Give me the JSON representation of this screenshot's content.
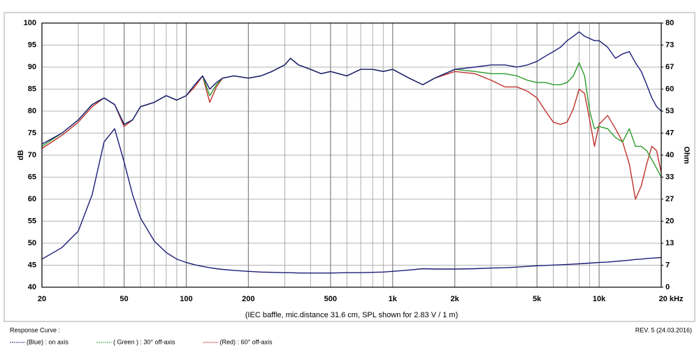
{
  "chart_data": {
    "type": "line",
    "x_label": "(IEC baffle, mic.distance 31.6 cm, SPL shown for 2.83 V / 1 m)",
    "y_label": "dB",
    "y2_label": "Ohm",
    "legend_title": "Response Curve :",
    "note": "REV. 5 (24.03.2016)",
    "xscale": "log",
    "grid": true,
    "legend": "bottom-left",
    "xlim": [
      20,
      20000
    ],
    "xticks": [
      20,
      50,
      100,
      200,
      500,
      {
        "value": 1000,
        "label": "1k"
      },
      {
        "value": 2000,
        "label": "2k"
      },
      {
        "value": 5000,
        "label": "5k"
      },
      {
        "value": 10000,
        "label": "10k"
      },
      {
        "value": 20000,
        "label": "20 kHz"
      }
    ],
    "xgrid_minor": [
      30,
      40,
      60,
      70,
      80,
      90,
      300,
      400,
      600,
      700,
      800,
      900,
      3000,
      4000,
      6000,
      7000,
      8000,
      9000
    ],
    "ylim": [
      40,
      100
    ],
    "yticks": [
      40,
      45,
      50,
      55,
      60,
      65,
      70,
      75,
      80,
      85,
      90,
      95,
      100
    ],
    "y2lim": [
      0,
      80
    ],
    "y2ticks": [
      0,
      {
        "value": 6.67,
        "label": "7"
      },
      {
        "value": 13.33,
        "label": "13"
      },
      20,
      {
        "value": 26.67,
        "label": "27"
      },
      {
        "value": 33.33,
        "label": "33"
      },
      40,
      {
        "value": 46.67,
        "label": "47"
      },
      {
        "value": 53.33,
        "label": "53"
      },
      60,
      {
        "value": 66.67,
        "label": "67"
      },
      {
        "value": 73.33,
        "label": "73"
      },
      80
    ],
    "x": [
      20,
      25,
      30,
      35,
      40,
      45,
      50,
      55,
      60,
      70,
      80,
      90,
      100,
      110,
      120,
      130,
      140,
      150,
      170,
      200,
      230,
      260,
      300,
      320,
      350,
      400,
      450,
      500,
      600,
      700,
      800,
      900,
      1000,
      1200,
      1400,
      1600,
      2000,
      2500,
      3000,
      3500,
      4000,
      4500,
      5000,
      5500,
      6000,
      6500,
      7000,
      7500,
      8000,
      8500,
      9000,
      9500,
      10000,
      11000,
      12000,
      13000,
      14000,
      15000,
      16000,
      17000,
      18000,
      19000,
      20000
    ],
    "series": [
      {
        "name": "(Blue) : on axis",
        "color": "#1c1c78",
        "values": [
          72.5,
          75,
          78,
          81.5,
          83,
          81.5,
          77,
          78,
          81,
          82,
          83.5,
          82.5,
          83.5,
          86,
          88,
          85,
          86.5,
          87.5,
          88,
          87.5,
          88,
          89,
          90.5,
          92,
          90.5,
          89.5,
          88.5,
          89,
          88,
          89.5,
          89.5,
          89,
          89.5,
          87.5,
          86,
          87.5,
          89.5,
          90,
          90.5,
          90.5,
          90,
          90.5,
          91.3,
          92.5,
          93.5,
          94.5,
          96,
          97,
          98,
          97,
          96.5,
          96,
          96,
          94.5,
          92,
          93,
          93.5,
          91,
          89,
          86,
          83,
          81,
          80
        ]
      },
      {
        "name": "( Green ) : 30° off-axis",
        "color": "#2a9a2a",
        "values": [
          72,
          75,
          78,
          81.5,
          83,
          81.5,
          77,
          78,
          81,
          82,
          83.5,
          82.5,
          83.5,
          86,
          88,
          83.5,
          86,
          87.5,
          88,
          87.5,
          88,
          89,
          90.5,
          92,
          90.5,
          89.5,
          88.5,
          89,
          88,
          89.5,
          89.5,
          89,
          89.5,
          87.5,
          86,
          87.5,
          89.5,
          89,
          88.5,
          88.5,
          88,
          87,
          86.5,
          86.5,
          86,
          86,
          86.5,
          88,
          91,
          88,
          80,
          76,
          76.5,
          76,
          74,
          73,
          76,
          72,
          72,
          71,
          69,
          67,
          65
        ]
      },
      {
        "name": "(Red) : 60° off-axis",
        "color": "#c0302a",
        "values": [
          71.5,
          74.5,
          77.5,
          81,
          83,
          81.5,
          76.5,
          78,
          81,
          82,
          83.5,
          82.5,
          83.5,
          85.5,
          88,
          82,
          85.5,
          87.5,
          88,
          87.5,
          88,
          89,
          90.5,
          92,
          90.5,
          89.5,
          88.5,
          89,
          88,
          89.5,
          89.5,
          89,
          89.5,
          87.5,
          86,
          87.5,
          89,
          88.5,
          87,
          85.5,
          85.5,
          84.5,
          83,
          80,
          77.5,
          77,
          77.5,
          80.5,
          85,
          84,
          78,
          72,
          77,
          79,
          76,
          73,
          68,
          60,
          63,
          68,
          72,
          71,
          66
        ]
      },
      {
        "axis": "y2",
        "color": "#1c1c78",
        "values": [
          8.5,
          12,
          17,
          28,
          44,
          48,
          38,
          28,
          21,
          14,
          10.5,
          8.5,
          7.5,
          6.8,
          6.3,
          5.9,
          5.6,
          5.4,
          5.1,
          4.8,
          4.6,
          4.5,
          4.4,
          4.4,
          4.3,
          4.3,
          4.3,
          4.3,
          4.4,
          4.4,
          4.5,
          4.6,
          4.8,
          5.2,
          5.6,
          5.5,
          5.5,
          5.6,
          5.8,
          5.9,
          6.1,
          6.3,
          6.5,
          6.6,
          6.7,
          6.8,
          6.9,
          7,
          7.1,
          7.2,
          7.3,
          7.4,
          7.5,
          7.6,
          7.8,
          8,
          8.2,
          8.4,
          8.5,
          8.7,
          8.8,
          8.9,
          9
        ]
      }
    ]
  }
}
